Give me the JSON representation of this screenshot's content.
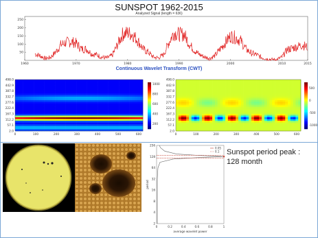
{
  "header": {
    "title": "SUNSPOT 1962-2015",
    "subtitle": "Analyzed Signal (length = 636)"
  },
  "cwt_title": "Continuous Wavelet Transform (CWT)",
  "scalogram_left": {
    "yticks": [
      "498.0",
      "442.9",
      "387.8",
      "332.7",
      "277.6",
      "222.4",
      "167.3",
      "112.2",
      "57.1",
      "2.0"
    ],
    "xticks": [
      "0",
      "100",
      "200",
      "300",
      "400",
      "500",
      "600"
    ],
    "colorbar_ticks": [
      "1000",
      "800",
      "600",
      "400",
      "200"
    ]
  },
  "scalogram_right": {
    "yticks": [
      "498.0",
      "442.9",
      "387.8",
      "332.7",
      "277.6",
      "222.4",
      "167.3",
      "112.2",
      "57.1",
      "2.0"
    ],
    "xticks": [
      "0",
      "100",
      "200",
      "300",
      "400",
      "500",
      "600"
    ],
    "colorbar_ticks": [
      "500",
      "0",
      "-500",
      "-1000"
    ]
  },
  "note": {
    "line1": "Sunspot period peak :",
    "line2": "128 month"
  },
  "colors": {
    "signal": "#e02020",
    "cwt_title": "#2a4fc0",
    "frame": "#7aa7d6"
  },
  "chart_data": [
    {
      "type": "line",
      "title": "SUNSPOT 1962-2015",
      "subtitle": "Analyzed Signal (length = 636)",
      "x_ticks": [
        "1960",
        "1970",
        "1980",
        "1990",
        "2000",
        "2010",
        "2015"
      ],
      "y_ticks": [
        "250",
        "200",
        "150",
        "100",
        "50"
      ],
      "xlim": [
        1962,
        2015
      ],
      "ylim": [
        0,
        270
      ],
      "grid": false,
      "series": [
        {
          "x": [
            1962,
            1963,
            1964,
            1965,
            1966,
            1967,
            1968,
            1969,
            1970,
            1971,
            1972,
            1973,
            1974,
            1975,
            1976,
            1977,
            1978,
            1979,
            1980,
            1981,
            1982,
            1983,
            1984,
            1985,
            1986,
            1987,
            1988,
            1989,
            1990,
            1991,
            1992,
            1993,
            1994,
            1995,
            1996,
            1997,
            1998,
            1999,
            2000,
            2001,
            2002,
            2003,
            2004,
            2005,
            2006,
            2007,
            2008,
            2009,
            2010,
            2011,
            2012,
            2013,
            2014,
            2015
          ],
          "values": [
            40,
            28,
            12,
            18,
            50,
            95,
            110,
            115,
            105,
            70,
            70,
            40,
            35,
            18,
            15,
            30,
            95,
            160,
            170,
            160,
            120,
            70,
            50,
            20,
            15,
            35,
            110,
            170,
            160,
            160,
            100,
            60,
            35,
            20,
            12,
            30,
            70,
            110,
            150,
            140,
            120,
            70,
            45,
            35,
            18,
            10,
            5,
            5,
            20,
            65,
            75,
            85,
            95,
            80
          ]
        }
      ]
    },
    {
      "type": "heatmap",
      "title": "",
      "y_ticks": [
        "498.0",
        "442.9",
        "387.8",
        "332.7",
        "277.6",
        "222.4",
        "167.3",
        "112.2",
        "57.1",
        "2.0"
      ],
      "x_ticks": [
        "0",
        "100",
        "200",
        "300",
        "400",
        "500",
        "600"
      ],
      "colorbar": [
        200,
        1000
      ],
      "peak_scale": 128
    },
    {
      "type": "heatmap",
      "title": "",
      "y_ticks": [
        "498.0",
        "442.9",
        "387.8",
        "332.7",
        "277.6",
        "222.4",
        "167.3",
        "112.2",
        "57.1",
        "2.0"
      ],
      "x_ticks": [
        "0",
        "100",
        "200",
        "300",
        "400",
        "500",
        "600"
      ],
      "colorbar": [
        -1000,
        500
      ]
    },
    {
      "type": "line",
      "title": "",
      "xlabel": "average wavelet power",
      "ylabel": "period",
      "x_ticks": [
        "0",
        "0.2",
        "0.4",
        "0.6",
        "0.8",
        "1"
      ],
      "y_ticks": [
        "256",
        "128",
        "64",
        "32",
        "16",
        "8",
        "4",
        "2"
      ],
      "xlim": [
        0,
        1
      ],
      "legend": [
        "0.05",
        "0.1"
      ],
      "legend_position": "top-right",
      "series": [
        {
          "name": "average wavelet power",
          "periods": [
            2,
            4,
            8,
            16,
            32,
            64,
            90,
            110,
            120,
            128,
            135,
            150,
            180,
            220,
            256
          ],
          "values": [
            0.01,
            0.01,
            0.01,
            0.01,
            0.01,
            0.02,
            0.05,
            0.25,
            0.6,
            1.0,
            0.7,
            0.3,
            0.12,
            0.06,
            0.04
          ]
        }
      ]
    }
  ]
}
